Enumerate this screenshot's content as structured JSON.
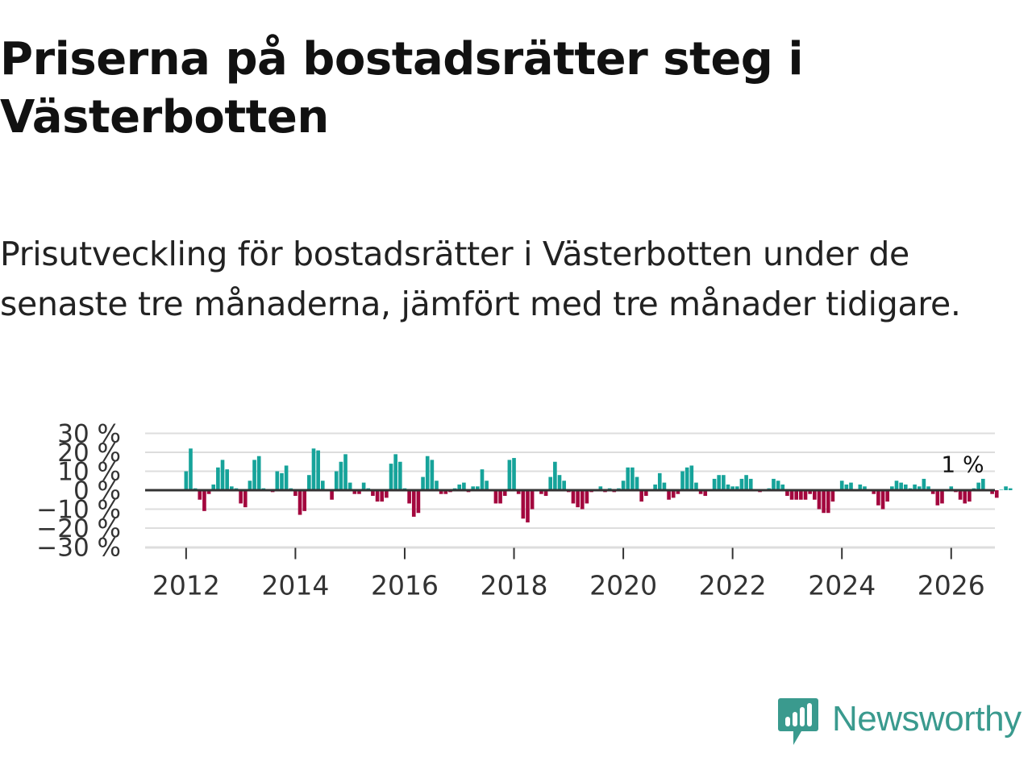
{
  "header": {
    "title": "Priserna på bostadsrätter steg i Västerbotten",
    "subtitle": "Prisutveckling för bostadsrätter i Västerbotten under de senaste tre månaderna, jämfört med tre månader tidigare."
  },
  "brand": {
    "name": "Newsworthy",
    "color": "#3a9a8e"
  },
  "chart_data": {
    "type": "bar",
    "title": "Priserna på bostadsrätter steg i Västerbotten",
    "subtitle": "Prisutveckling för bostadsrätter i Västerbotten under de senaste tre månaderna, jämfört med tre månader tidigare.",
    "xlabel": "",
    "ylabel": "",
    "unit": "%",
    "ylim": [
      -30,
      30
    ],
    "yticks": [
      30,
      20,
      10,
      0,
      -10,
      -20,
      -30
    ],
    "ytick_labels": [
      "30 %",
      "20 %",
      "10 %",
      "0 %",
      "−10 %",
      "−20 %",
      "−30 %"
    ],
    "xlim": [
      2011.25,
      2026.8
    ],
    "xticks": [
      2012,
      2014,
      2016,
      2018,
      2020,
      2022,
      2024,
      2026
    ],
    "xtick_labels": [
      "2012",
      "2014",
      "2016",
      "2018",
      "2020",
      "2022",
      "2024",
      "2026"
    ],
    "grid": true,
    "start": {
      "year": 2012,
      "month": 1
    },
    "frequency": "monthly",
    "colors": {
      "positive": "#16a39a",
      "negative": "#a3073e",
      "grid": "#dddddd",
      "zero": "#333333"
    },
    "last_value_label": "1 %",
    "values": [
      10,
      22,
      1,
      -5,
      -11,
      -2,
      3,
      12,
      16,
      11,
      2,
      1,
      -7,
      -9,
      5,
      16,
      18,
      1,
      0,
      -1,
      10,
      9,
      13,
      1,
      -3,
      -13,
      -11,
      8,
      22,
      21,
      5,
      0,
      -5,
      10,
      15,
      19,
      4,
      -2,
      -2,
      4,
      1,
      -3,
      -6,
      -6,
      -4,
      14,
      19,
      15,
      1,
      -7,
      -14,
      -12,
      7,
      18,
      16,
      5,
      -2,
      -2,
      -1,
      1,
      3,
      4,
      -1,
      2,
      2,
      11,
      5,
      0,
      -7,
      -7,
      -3,
      16,
      17,
      -2,
      -15,
      -17,
      -10,
      0,
      -2,
      -3,
      7,
      15,
      8,
      5,
      -1,
      -7,
      -9,
      -10,
      -7,
      -1,
      0,
      2,
      -1,
      1,
      -1,
      1,
      5,
      12,
      12,
      7,
      -6,
      -3,
      0,
      3,
      9,
      4,
      -5,
      -4,
      -2,
      10,
      12,
      13,
      4,
      -2,
      -3,
      0,
      6,
      8,
      8,
      3,
      2,
      2,
      6,
      8,
      6,
      0,
      -1,
      0,
      1,
      6,
      5,
      3,
      -3,
      -5,
      -5,
      -5,
      -5,
      -2,
      -5,
      -10,
      -12,
      -12,
      -6,
      0,
      5,
      3,
      4,
      0,
      3,
      2,
      0,
      -2,
      -8,
      -10,
      -6,
      2,
      5,
      4,
      3,
      1,
      3,
      2,
      6,
      2,
      -2,
      -8,
      -7,
      0,
      2,
      -1,
      -5,
      -7,
      -6,
      1,
      4,
      6,
      0,
      -2,
      -4,
      0,
      2,
      1
    ]
  }
}
